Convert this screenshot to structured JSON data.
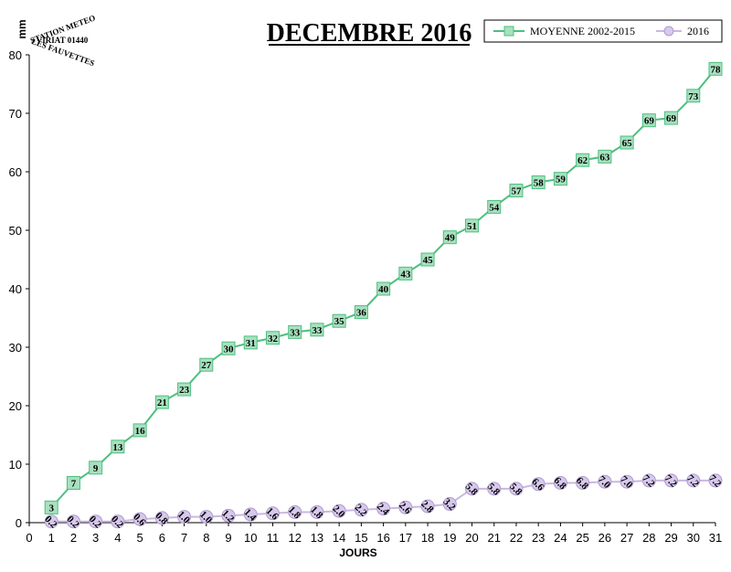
{
  "chart_data": {
    "type": "line",
    "title": "DECEMBRE 2016",
    "xlabel": "JOURS",
    "ylabel": "mm",
    "xlim": [
      0,
      31
    ],
    "ylim": [
      0,
      80
    ],
    "x_ticks": [
      0,
      1,
      2,
      3,
      4,
      5,
      6,
      7,
      8,
      9,
      10,
      11,
      12,
      13,
      14,
      15,
      16,
      17,
      18,
      19,
      20,
      21,
      22,
      23,
      24,
      25,
      26,
      27,
      28,
      29,
      30,
      31
    ],
    "y_ticks": [
      0,
      10,
      20,
      30,
      40,
      50,
      60,
      70,
      80
    ],
    "grid": false,
    "legend_position": "top-right",
    "series": [
      {
        "name": "MOYENNE 2002-2015",
        "color": "#4dbf7f",
        "marker_fill": "#a8e0bf",
        "marker": "square",
        "x": [
          1,
          2,
          3,
          4,
          5,
          6,
          7,
          8,
          9,
          10,
          11,
          12,
          13,
          14,
          15,
          16,
          17,
          18,
          19,
          20,
          21,
          22,
          23,
          24,
          25,
          26,
          27,
          28,
          29,
          30,
          31
        ],
        "values": [
          2.6,
          6.8,
          9.4,
          13.0,
          15.8,
          20.6,
          22.8,
          27.0,
          29.8,
          30.8,
          31.6,
          32.6,
          33.0,
          34.5,
          36.0,
          40.0,
          42.6,
          45.0,
          48.8,
          50.8,
          54.0,
          56.8,
          58.2,
          58.8,
          62.0,
          62.6,
          65.0,
          68.8,
          69.2,
          73.0,
          77.6
        ],
        "labels": [
          "3",
          "7",
          "9",
          "13",
          "16",
          "21",
          "23",
          "27",
          "30",
          "31",
          "32",
          "33",
          "33",
          "35",
          "36",
          "40",
          "43",
          "45",
          "49",
          "51",
          "54",
          "57",
          "58",
          "59",
          "62",
          "63",
          "65",
          "69",
          "69",
          "73",
          "78"
        ]
      },
      {
        "name": "2016",
        "color": "#c9b8e0",
        "marker_fill": "#d7c9ec",
        "marker": "circle",
        "x": [
          1,
          2,
          3,
          4,
          5,
          6,
          7,
          8,
          9,
          10,
          11,
          12,
          13,
          14,
          15,
          16,
          17,
          18,
          19,
          20,
          21,
          22,
          23,
          24,
          25,
          26,
          27,
          28,
          29,
          30,
          31
        ],
        "values": [
          0.2,
          0.2,
          0.2,
          0.2,
          0.6,
          0.8,
          1.0,
          1.0,
          1.2,
          1.4,
          1.6,
          1.8,
          1.8,
          2.0,
          2.2,
          2.4,
          2.6,
          2.8,
          3.2,
          5.8,
          5.8,
          5.8,
          6.6,
          6.8,
          6.8,
          7.0,
          7.0,
          7.2,
          7.2,
          7.2,
          7.2
        ],
        "labels": [
          "0.2",
          "0.2",
          "0.2",
          "0.2",
          "0.6",
          "0.8",
          "1.0",
          "1.0",
          "1.2",
          "1.4",
          "1.6",
          "1.8",
          "1.8",
          "2.0",
          "2.2",
          "2.4",
          "2.6",
          "2.8",
          "3.2",
          "5.8",
          "5.8",
          "5.8",
          "6.6",
          "6.8",
          "6.8",
          "7.0",
          "7.0",
          "7.2",
          "7.2",
          "7.2",
          "7.2"
        ]
      }
    ]
  },
  "stamp": {
    "line1": "STATION METEO",
    "line2": "VIRIAT 01440",
    "line3": "LES FAUVETTES"
  }
}
